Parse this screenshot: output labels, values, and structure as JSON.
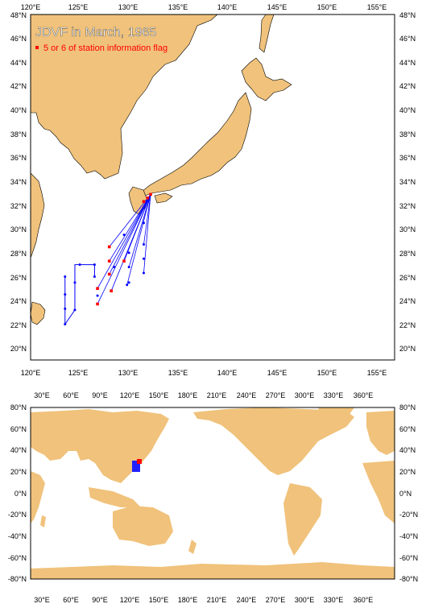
{
  "top_map": {
    "title": "JDVF in March, 1965",
    "legend_label": "5 or 6 of station information flag",
    "lon_ticks": [
      "120°E",
      "125°E",
      "130°E",
      "135°E",
      "140°E",
      "145°E",
      "150°E",
      "155°E"
    ],
    "lat_ticks": [
      "20°N",
      "22°N",
      "24°N",
      "26°N",
      "28°N",
      "30°N",
      "32°N",
      "34°N",
      "36°N",
      "38°N",
      "40°N",
      "42°N",
      "44°N",
      "46°N",
      "48°N"
    ],
    "colors": {
      "land": "#F0C27B",
      "track": "#0000FF",
      "flag": "#FF0000",
      "title": "#FFFFFF"
    }
  },
  "bottom_map": {
    "lon_ticks": [
      "30°E",
      "60°E",
      "90°E",
      "120°E",
      "150°E",
      "180°E",
      "210°E",
      "240°E",
      "270°E",
      "300°E",
      "330°E",
      "360°E"
    ],
    "lat_ticks": [
      "80°N",
      "60°N",
      "40°N",
      "20°N",
      "0°N",
      "-20°N",
      "-40°N",
      "-60°N",
      "-80°N"
    ]
  },
  "stations": {
    "flag_points": [
      [
        132.2,
        32.9
      ],
      [
        131.9,
        32.6
      ],
      [
        131.5,
        32.3
      ],
      [
        128,
        28.5
      ],
      [
        128,
        27.3
      ],
      [
        128,
        26.2
      ],
      [
        126.8,
        25
      ],
      [
        126.8,
        23.7
      ],
      [
        128.2,
        24.8
      ],
      [
        129.5,
        27.3
      ]
    ],
    "track_points": [
      [
        123.5,
        26
      ],
      [
        123.5,
        24.5
      ],
      [
        123.5,
        23.3
      ],
      [
        123.5,
        22
      ],
      [
        124.5,
        25.5
      ],
      [
        124.5,
        23.2
      ],
      [
        125,
        27
      ],
      [
        126.5,
        27
      ],
      [
        126.5,
        26
      ],
      [
        126.8,
        24.4
      ],
      [
        129.5,
        29.5
      ],
      [
        130,
        28
      ],
      [
        130,
        26.8
      ],
      [
        130,
        25.5
      ],
      [
        131.5,
        30.5
      ],
      [
        131.5,
        28.7
      ],
      [
        131.5,
        27.5
      ],
      [
        131.5,
        26.3
      ],
      [
        129.8,
        25.3
      ],
      [
        128.5,
        26.8
      ]
    ]
  }
}
